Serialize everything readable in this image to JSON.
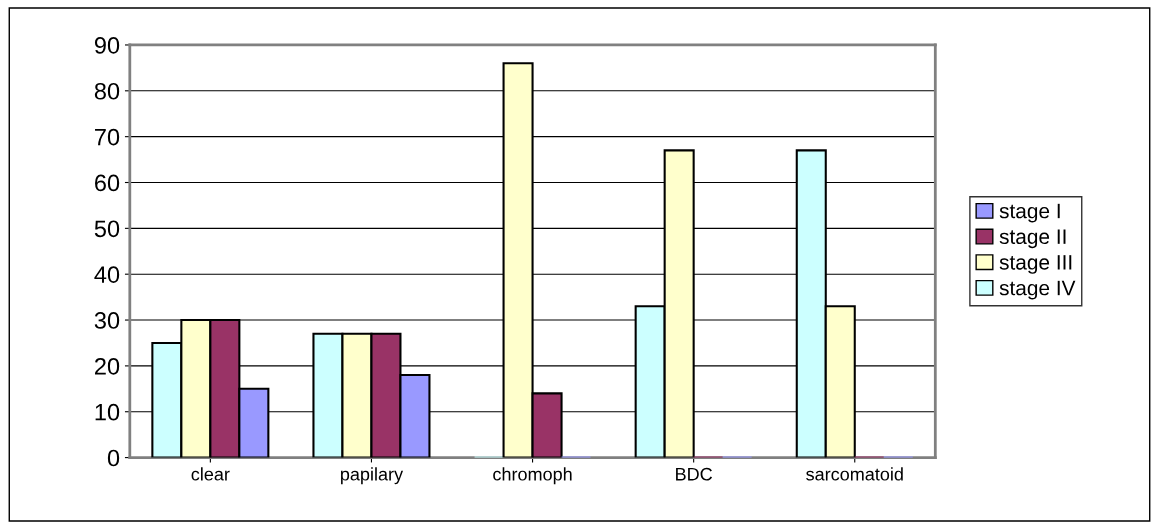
{
  "chart_data": {
    "type": "bar",
    "categories": [
      "clear",
      "papilary",
      "chromoph",
      "BDC",
      "sarcomatoid"
    ],
    "series": [
      {
        "name": "stage IV",
        "color": "#ccffff",
        "values": [
          25,
          27,
          0,
          33,
          67
        ]
      },
      {
        "name": "stage III",
        "color": "#ffffcc",
        "values": [
          30,
          27,
          86,
          67,
          33
        ]
      },
      {
        "name": "stage II",
        "color": "#993366",
        "values": [
          30,
          27,
          14,
          0,
          0
        ]
      },
      {
        "name": "stage I",
        "color": "#9999ff",
        "values": [
          15,
          18,
          0,
          0,
          0
        ]
      }
    ],
    "ylim": [
      0,
      90
    ],
    "yticks": [
      0,
      10,
      20,
      30,
      40,
      50,
      60,
      70,
      80,
      90
    ],
    "grid": "y",
    "legend": "right"
  }
}
